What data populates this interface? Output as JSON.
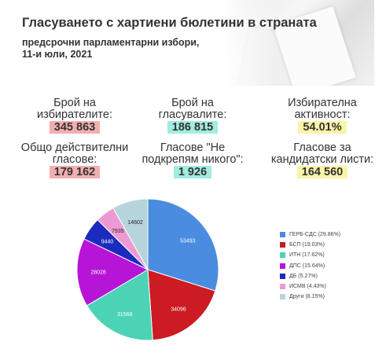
{
  "header": {
    "title": "Гласуването с хартиени бюлетини в страната",
    "subtitle_line1": "предсрочни парламентарни избори,",
    "subtitle_line2": "11-и юли, 2021"
  },
  "stats": {
    "voters_label_1": "Брой на",
    "voters_label_2": "избирателите:",
    "voters_value": "345 863",
    "voted_label_1": "Брой на",
    "voted_label_2": "гласувалите:",
    "voted_value": "186 815",
    "turnout_label_1": "Избирателна",
    "turnout_label_2": "активност:",
    "turnout_value": "54.01%",
    "valid_label_1": "Общо действителни",
    "valid_label_2": "гласове:",
    "valid_value": "179 162",
    "none_label_1": "Гласове \"Не",
    "none_label_2": "подкрепям никого\":",
    "none_value": "1 926",
    "parties_label_1": "Гласове за",
    "parties_label_2": "кандидатски листи:",
    "parties_value": "164 560"
  },
  "colors": {
    "highlight_pink": "#f3aeb0",
    "highlight_teal": "#a3ece0",
    "highlight_yellow": "#faf4a8"
  },
  "chart_data": {
    "type": "pie",
    "title": "",
    "categories": [
      "ГЕРБ-СДС (29.86%)",
      "БСП (19.03%)",
      "ИТН (17.62%)",
      "ДПС (15.64%)",
      "ДБ (5.27%)",
      "ИСМВ (4.43%)",
      "Други (8.15%)"
    ],
    "values": [
      53493,
      34096,
      31568,
      28028,
      9440,
      7935,
      14602
    ],
    "colors": [
      "#4a8de0",
      "#cc1b22",
      "#4cd3b5",
      "#b614d6",
      "#1c2bbd",
      "#ee9ad2",
      "#b6d4dc"
    ],
    "legend_position": "right"
  }
}
